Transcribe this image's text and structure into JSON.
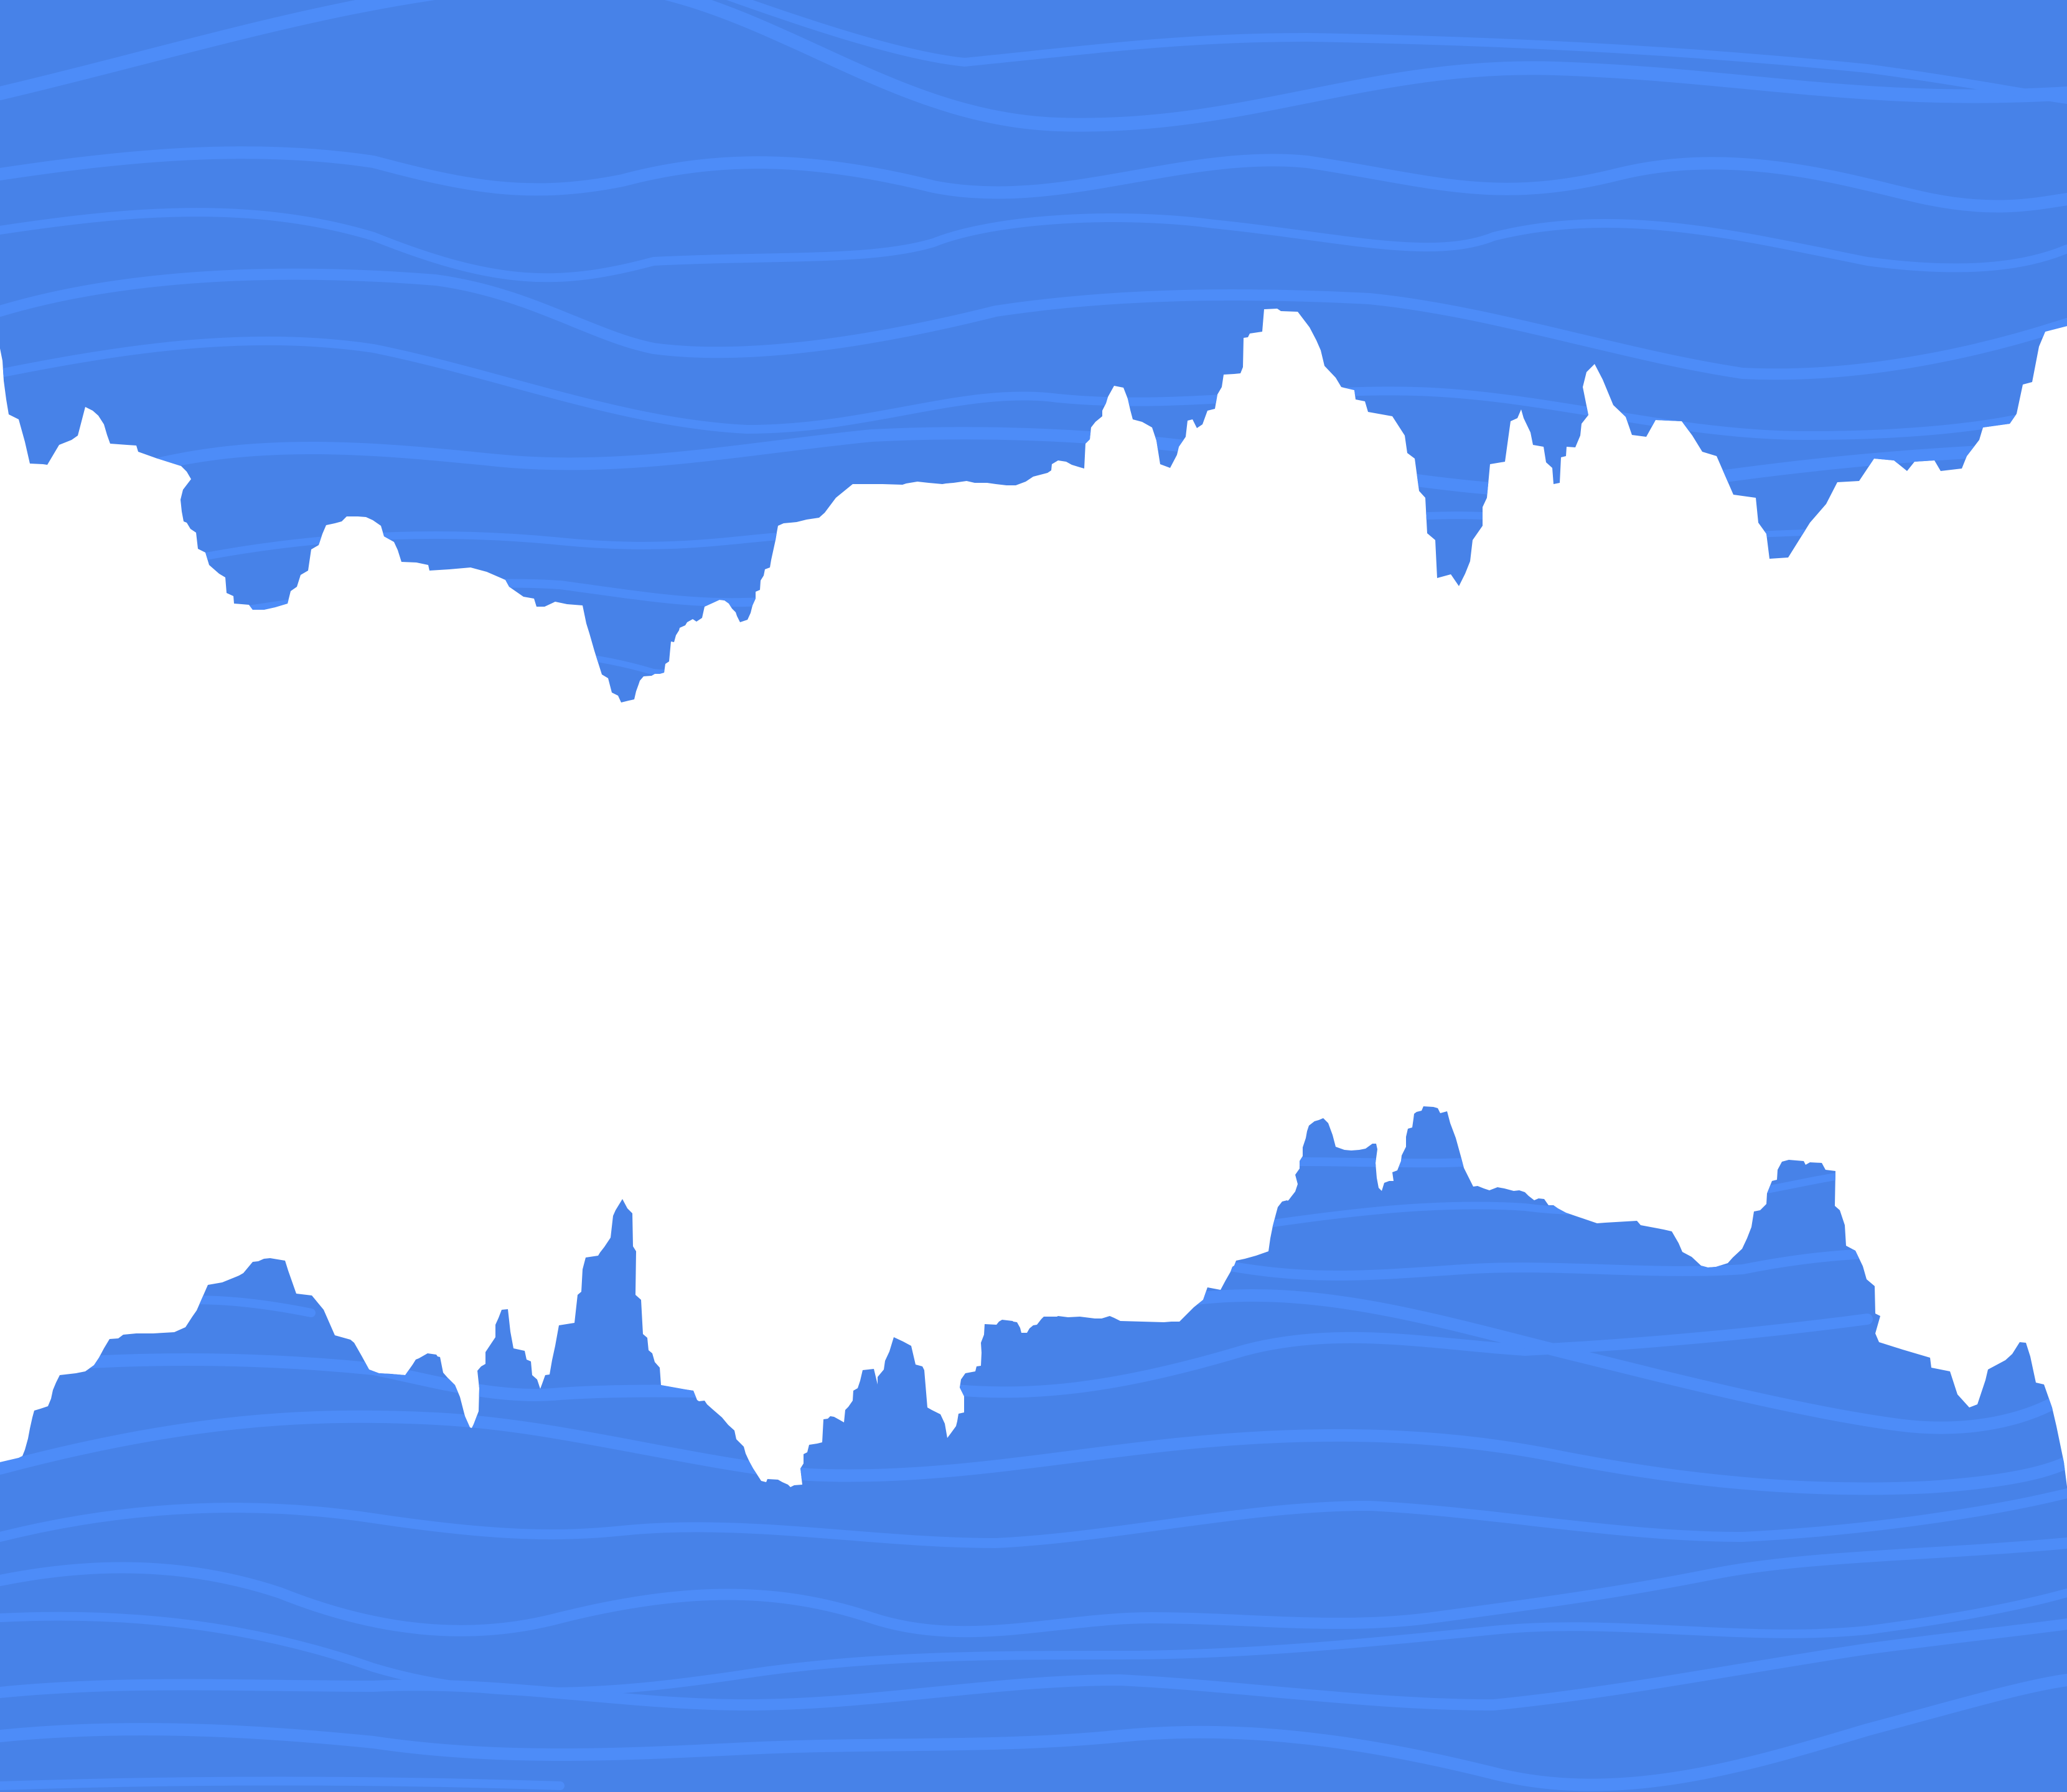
{
  "scene": {
    "type": "abstract-water-illustration",
    "background_color": "#ffffff",
    "water_color": "#4782e8",
    "wave_color": "#4d8cf8",
    "regions": [
      "top-water-band",
      "bottom-water-band"
    ],
    "edge_style": "jagged-coastline"
  }
}
